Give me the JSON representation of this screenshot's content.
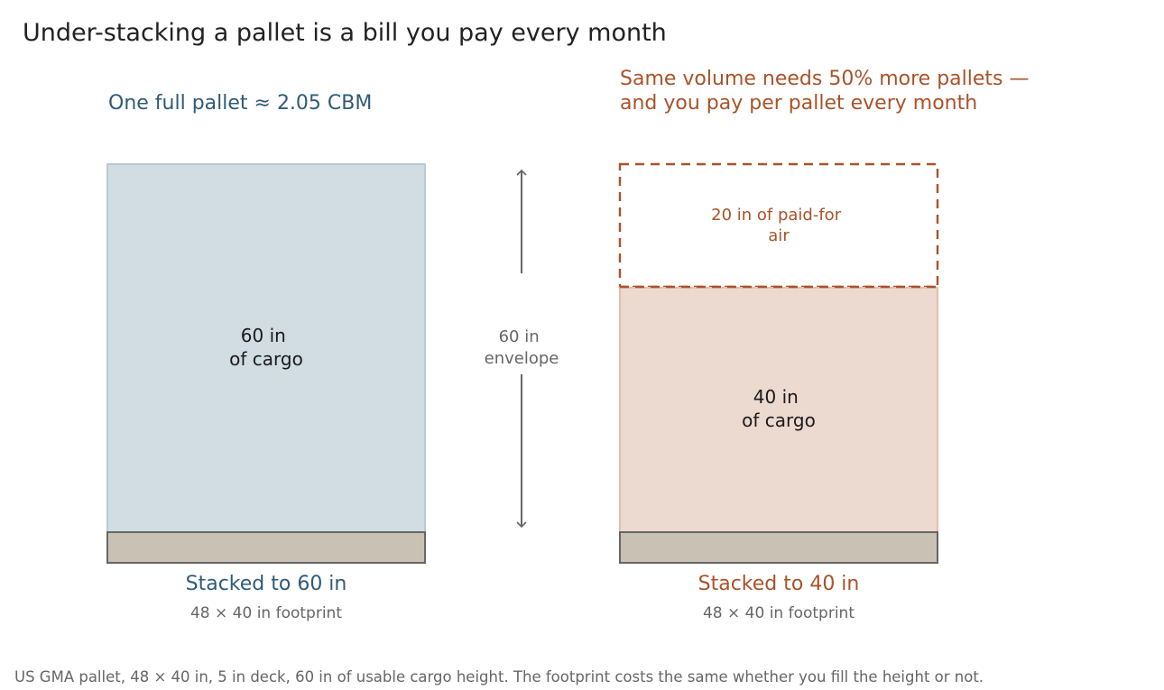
{
  "title": "Under-stacking a pallet is a bill you pay every month",
  "colors": {
    "title": "#222222",
    "full_accent": "#2f5b78",
    "partial_accent": "#a8532a",
    "muted": "#666666",
    "full_fill": "#d1dce3",
    "full_border": "#b9c9d6",
    "partial_fill": "#ecd9cf",
    "partial_border": "#e3bfad",
    "deck_fill": "#c9c1b4",
    "deck_border": "#666666",
    "dark_text": "#1a1a1a"
  },
  "left": {
    "heading": "One full pallet ≈ 2.05 CBM",
    "cargo_label_line1": "60 in",
    "cargo_label_line2": "of cargo",
    "caption": "Stacked to 60 in",
    "subcaption": "48 × 40 in footprint",
    "cargo_height_in": 60
  },
  "center": {
    "label_line1": "60 in",
    "label_line2": "envelope",
    "envelope_height_in": 60
  },
  "right": {
    "heading_line1": "Same volume needs 50% more pallets —",
    "heading_line2": "and you pay per pallet every month",
    "air_label_line1": "20 in of paid-for",
    "air_label_line2": "air",
    "cargo_label_line1": "40 in",
    "cargo_label_line2": "of cargo",
    "caption": "Stacked to 40 in",
    "subcaption": "48 × 40 in footprint",
    "cargo_height_in": 40,
    "air_height_in": 20
  },
  "footnote": "US GMA pallet, 48 × 40 in, 5 in deck, 60 in of usable cargo height. The footprint costs the same whether you fill the height or not."
}
